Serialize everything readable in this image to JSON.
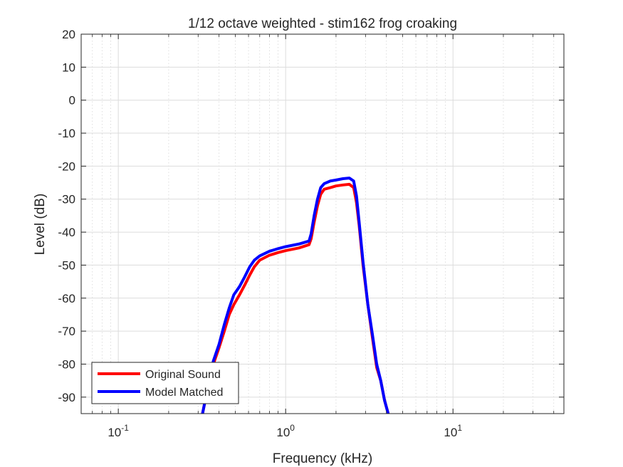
{
  "chart_data": {
    "type": "line",
    "title": "1/12 octave weighted - stim162 frog croaking",
    "xlabel": "Frequency (kHz)",
    "ylabel": "Level (dB)",
    "xscale": "log",
    "xlim": [
      0.06,
      46
    ],
    "ylim": [
      -95,
      20
    ],
    "yticks": [
      20,
      10,
      0,
      -10,
      -20,
      -30,
      -40,
      -50,
      -60,
      -70,
      -80,
      -90
    ],
    "xtick_labels": [
      {
        "value": 0.1,
        "base": "10",
        "exp": "-1"
      },
      {
        "value": 1,
        "base": "10",
        "exp": "0"
      },
      {
        "value": 10,
        "base": "10",
        "exp": "1"
      }
    ],
    "grid": true,
    "minor_grid": true,
    "legend_position": "bottom-left",
    "series": [
      {
        "name": "Original Sound",
        "color": "#ff0000",
        "x": [
          0.31,
          0.34,
          0.37,
          0.4,
          0.43,
          0.46,
          0.49,
          0.53,
          0.57,
          0.61,
          0.65,
          0.7,
          0.8,
          0.9,
          1.0,
          1.2,
          1.38,
          1.42,
          1.48,
          1.55,
          1.62,
          1.7,
          1.85,
          2.0,
          2.2,
          2.4,
          2.55,
          2.65,
          2.75,
          2.9,
          3.1,
          3.3,
          3.5,
          3.7,
          3.9,
          4.1,
          4.3
        ],
        "values": [
          -98,
          -88,
          -80,
          -75,
          -70,
          -65,
          -62,
          -59,
          -56,
          -53,
          -50.5,
          -48.5,
          -47,
          -46.2,
          -45.6,
          -44.8,
          -43.8,
          -42,
          -37,
          -32,
          -28.5,
          -27,
          -26.5,
          -26,
          -25.7,
          -25.5,
          -26.5,
          -31,
          -38,
          -50,
          -62,
          -72,
          -81,
          -85,
          -91,
          -95,
          -99
        ]
      },
      {
        "name": "Model Matched",
        "color": "#0000ff",
        "x": [
          0.31,
          0.34,
          0.37,
          0.4,
          0.43,
          0.46,
          0.49,
          0.53,
          0.57,
          0.61,
          0.65,
          0.7,
          0.8,
          0.9,
          1.0,
          1.2,
          1.38,
          1.42,
          1.48,
          1.55,
          1.62,
          1.7,
          1.85,
          2.0,
          2.2,
          2.4,
          2.55,
          2.65,
          2.75,
          2.9,
          3.1,
          3.3,
          3.5,
          3.7,
          3.9,
          4.1,
          4.3
        ],
        "values": [
          -98,
          -88,
          -79,
          -74,
          -68,
          -63,
          -59,
          -56.5,
          -53.5,
          -50.5,
          -48.5,
          -47.2,
          -45.8,
          -45,
          -44.4,
          -43.6,
          -42.7,
          -40.5,
          -35,
          -30,
          -26.5,
          -25.3,
          -24.5,
          -24.2,
          -23.8,
          -23.6,
          -24.5,
          -29,
          -37,
          -49,
          -62,
          -71,
          -80,
          -85,
          -91,
          -95,
          -99
        ]
      }
    ]
  }
}
